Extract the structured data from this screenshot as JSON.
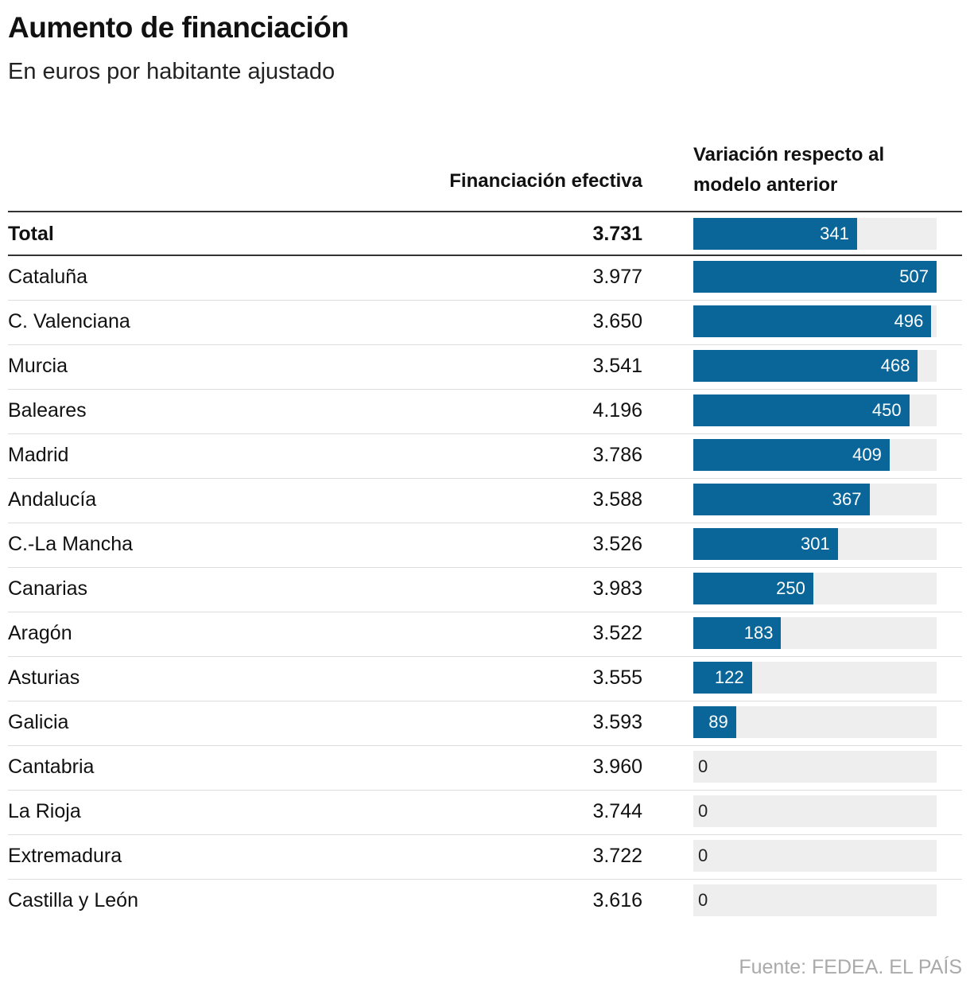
{
  "title": "Aumento de financiación",
  "subtitle": "En euros por habitante ajustado",
  "table": {
    "columns": {
      "financing": "Financiación efectiva",
      "variation": "Variación respecto al modelo anterior"
    },
    "total": {
      "name": "Total",
      "financing": "3.731",
      "variation": 341
    },
    "rows": [
      {
        "name": "Cataluña",
        "financing": "3.977",
        "variation": 507
      },
      {
        "name": "C. Valenciana",
        "financing": "3.650",
        "variation": 496
      },
      {
        "name": "Murcia",
        "financing": "3.541",
        "variation": 468
      },
      {
        "name": "Baleares",
        "financing": "4.196",
        "variation": 450
      },
      {
        "name": "Madrid",
        "financing": "3.786",
        "variation": 409
      },
      {
        "name": "Andalucía",
        "financing": "3.588",
        "variation": 367
      },
      {
        "name": "C.-La Mancha",
        "financing": "3.526",
        "variation": 301
      },
      {
        "name": "Canarias",
        "financing": "3.983",
        "variation": 250
      },
      {
        "name": "Aragón",
        "financing": "3.522",
        "variation": 183
      },
      {
        "name": "Asturias",
        "financing": "3.555",
        "variation": 122
      },
      {
        "name": "Galicia",
        "financing": "3.593",
        "variation": 89
      },
      {
        "name": "Cantabria",
        "financing": "3.960",
        "variation": 0
      },
      {
        "name": "La Rioja",
        "financing": "3.744",
        "variation": 0
      },
      {
        "name": "Extremadura",
        "financing": "3.722",
        "variation": 0
      },
      {
        "name": "Castilla y León",
        "financing": "3.616",
        "variation": 0
      }
    ],
    "bar_color": "#0a6699",
    "track_color": "#eeeeee"
  },
  "source": "Fuente: FEDEA. EL PAÍS"
}
